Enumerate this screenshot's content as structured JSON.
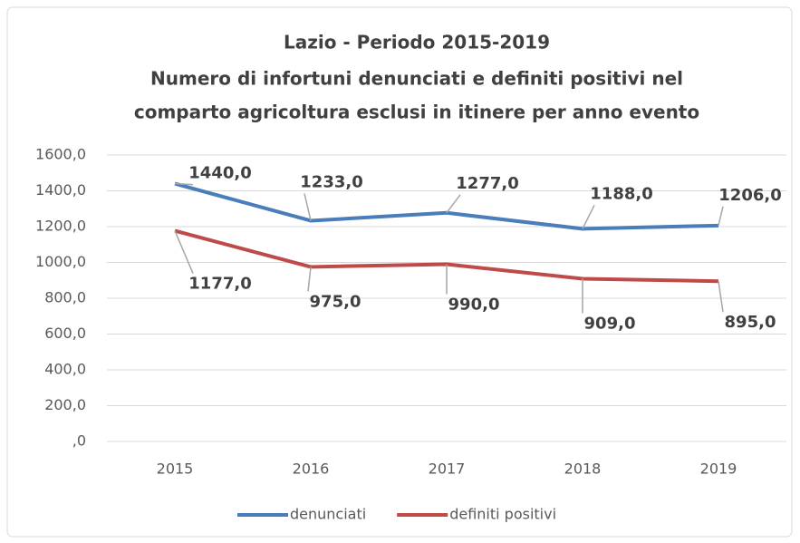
{
  "chart_data": {
    "type": "line",
    "title": "Lazio - Periodo 2015-2019",
    "subtitle": [
      "Numero di infortuni denunciati e definiti positivi nel",
      "comparto agricoltura esclusi in itinere per anno evento"
    ],
    "categories": [
      "2015",
      "2016",
      "2017",
      "2018",
      "2019"
    ],
    "series": [
      {
        "name": "denunciati",
        "color": "#4a7ebb",
        "values": [
          1440,
          1233,
          1277,
          1188,
          1206
        ],
        "value_labels": [
          "1440,0",
          "1233,0",
          "1277,0",
          "1188,0",
          "1206,0"
        ]
      },
      {
        "name": "definiti positivi",
        "color": "#be4b48",
        "values": [
          1177,
          975,
          990,
          909,
          895
        ],
        "value_labels": [
          "1177,0",
          "975,0",
          "990,0",
          "909,0",
          "895,0"
        ]
      }
    ],
    "ylim": [
      0,
      1600
    ],
    "yticks": [
      {
        "value": 0,
        "label": ",0"
      },
      {
        "value": 200,
        "label": "200,0"
      },
      {
        "value": 400,
        "label": "400,0"
      },
      {
        "value": 600,
        "label": "600,0"
      },
      {
        "value": 800,
        "label": "800,0"
      },
      {
        "value": 1000,
        "label": "1000,0"
      },
      {
        "value": 1200,
        "label": "1200,0"
      },
      {
        "value": 1400,
        "label": "1400,0"
      },
      {
        "value": 1600,
        "label": "1600,0"
      }
    ],
    "grid": true,
    "legend": "bottom"
  }
}
